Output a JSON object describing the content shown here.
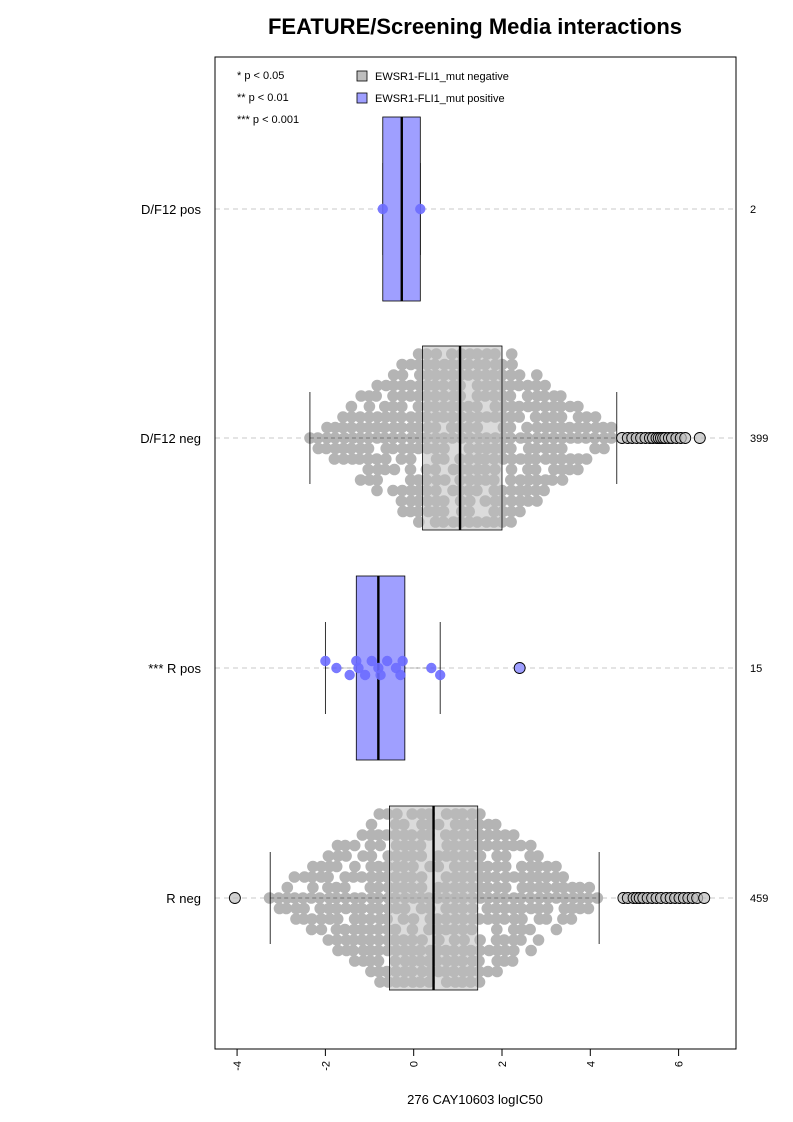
{
  "chart_data": {
    "type": "boxplot",
    "title": "FEATURE/Screening Media interactions",
    "xlabel": "276 CAY10603 logIC50",
    "xlim": [
      -4.5,
      7.3
    ],
    "x_ticks": [
      -4,
      -2,
      0,
      2,
      4,
      6
    ],
    "x_tick_labels": [
      "-4",
      "-2",
      "0",
      "2",
      "4",
      "6"
    ],
    "grid": "dashed horizontal line per group",
    "legend_position": "top-left",
    "legend": [
      {
        "label": "EWSR1-FLI1_mut negative",
        "color": "#bebebe"
      },
      {
        "label": "EWSR1-FLI1_mut positive",
        "color": "#9f9fff"
      }
    ],
    "significance_key": [
      "* p < 0.05",
      "** p < 0.01",
      "*** p < 0.001"
    ],
    "groups": [
      {
        "label": "D/F12 pos",
        "count": "2",
        "status": "positive",
        "whisker_low": -0.7,
        "q1": -0.7,
        "median": -0.27,
        "q3": 0.15,
        "whisker_high": 0.15,
        "points": [
          -0.7,
          0.15
        ],
        "outliers": []
      },
      {
        "label": "D/F12 neg",
        "count": "399",
        "status": "negative",
        "whisker_low": -2.35,
        "q1": 0.2,
        "median": 1.05,
        "q3": 2.0,
        "whisker_high": 4.6,
        "points": [],
        "outliers": [
          4.72,
          4.85,
          4.95,
          5.05,
          5.15,
          5.25,
          5.35,
          5.42,
          5.5,
          5.55,
          5.6,
          5.65,
          5.7,
          5.78,
          5.85,
          5.95,
          6.05,
          6.15,
          6.48
        ]
      },
      {
        "label": "*** R pos",
        "count": "15",
        "status": "positive",
        "whisker_low": -2.0,
        "q1": -1.3,
        "median": -0.8,
        "q3": -0.2,
        "whisker_high": 0.6,
        "points": [
          -2.0,
          -1.75,
          -1.45,
          -1.3,
          -1.25,
          -1.1,
          -0.95,
          -0.8,
          -0.75,
          -0.6,
          -0.4,
          -0.3,
          -0.25,
          0.4,
          0.6
        ],
        "outliers": [
          2.4
        ]
      },
      {
        "label": "R neg",
        "count": "459",
        "status": "negative",
        "whisker_low": -3.25,
        "q1": -0.55,
        "median": 0.45,
        "q3": 1.45,
        "whisker_high": 4.2,
        "points": [],
        "outliers": [
          -4.05,
          4.75,
          4.85,
          4.98,
          5.05,
          5.12,
          5.2,
          5.3,
          5.4,
          5.5,
          5.6,
          5.72,
          5.82,
          5.92,
          6.02,
          6.12,
          6.22,
          6.32,
          6.42,
          6.58
        ]
      }
    ]
  }
}
